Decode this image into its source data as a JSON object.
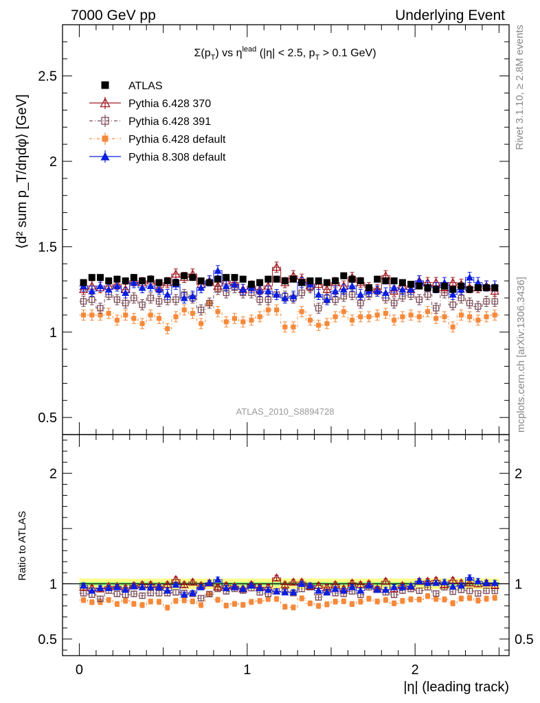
{
  "header": {
    "left": "7000 GeV pp",
    "right": "Underlying Event"
  },
  "plot_title": {
    "sigma": "Σ(p",
    "sub_t": "T",
    "vs_eta": ") vs η",
    "sup_lead": "lead",
    "cuts_a": " (|η| < 2.5, p",
    "sub_t2": "T",
    "cuts_b": " > 0.1 GeV)"
  },
  "ylabel_main": "⟨d² sum p_T/dηdφ⟩ [GeV]",
  "ylabel_ratio": "Ratio to ATLAS",
  "xlabel": "|η| (leading track)",
  "analysis_id": "ATLAS_2010_S8894728",
  "side_text_top": "Rivet 3.1.10, ≥ 2.8M events",
  "side_text_bottom": "mcplots.cern.ch [arXiv:1306.3436]",
  "legend": [
    {
      "label": "ATLAS",
      "style": "atlas"
    },
    {
      "label": "Pythia 6.428 370",
      "style": "p370"
    },
    {
      "label": "Pythia 6.428 391",
      "style": "p391"
    },
    {
      "label": "Pythia 6.428 default",
      "style": "p6def"
    },
    {
      "label": "Pythia 8.308 default",
      "style": "p8def"
    }
  ],
  "colors": {
    "atlas": "#000000",
    "p370": "#a01820",
    "p391": "#7a4a55",
    "p6def": "#f5893a",
    "p8def": "#0a1ee0",
    "band_green": "#99ff77",
    "band_yellow": "#ffff88"
  },
  "chart_data": {
    "type": "scatter",
    "x_main": {
      "ticks": [
        0,
        1,
        2
      ],
      "xlim": [
        -0.1,
        2.56
      ]
    },
    "y_main": {
      "ticks": [
        0.5,
        1,
        1.5,
        2,
        2.5
      ],
      "ylim": [
        0.4,
        2.8
      ]
    },
    "y_ratio": {
      "ticks": [
        0.5,
        1,
        2
      ],
      "ylim": [
        0.35,
        2.35
      ]
    },
    "x": [
      0.025,
      0.075,
      0.125,
      0.175,
      0.225,
      0.275,
      0.325,
      0.375,
      0.425,
      0.475,
      0.525,
      0.575,
      0.625,
      0.675,
      0.725,
      0.775,
      0.825,
      0.875,
      0.925,
      0.975,
      1.025,
      1.075,
      1.125,
      1.175,
      1.225,
      1.275,
      1.325,
      1.375,
      1.425,
      1.475,
      1.525,
      1.575,
      1.625,
      1.675,
      1.725,
      1.775,
      1.825,
      1.875,
      1.925,
      1.975,
      2.025,
      2.075,
      2.125,
      2.175,
      2.225,
      2.275,
      2.325,
      2.375,
      2.425,
      2.475
    ],
    "series": [
      {
        "name": "ATLAS",
        "style": "atlas",
        "values": [
          1.29,
          1.32,
          1.32,
          1.3,
          1.31,
          1.3,
          1.32,
          1.3,
          1.31,
          1.29,
          1.3,
          1.29,
          1.33,
          1.32,
          1.3,
          1.29,
          1.31,
          1.32,
          1.32,
          1.31,
          1.28,
          1.29,
          1.31,
          1.31,
          1.3,
          1.31,
          1.29,
          1.3,
          1.3,
          1.29,
          1.3,
          1.33,
          1.31,
          1.3,
          1.26,
          1.31,
          1.3,
          1.3,
          1.29,
          1.28,
          1.27,
          1.26,
          1.25,
          1.27,
          1.25,
          1.27,
          1.25,
          1.26,
          1.26,
          1.26
        ],
        "err": [
          0.02,
          0.02,
          0.02,
          0.02,
          0.02,
          0.02,
          0.02,
          0.02,
          0.02,
          0.02,
          0.02,
          0.02,
          0.02,
          0.02,
          0.02,
          0.02,
          0.02,
          0.02,
          0.02,
          0.02,
          0.02,
          0.02,
          0.02,
          0.02,
          0.02,
          0.02,
          0.02,
          0.02,
          0.02,
          0.02,
          0.02,
          0.02,
          0.02,
          0.02,
          0.02,
          0.02,
          0.02,
          0.02,
          0.02,
          0.02,
          0.02,
          0.02,
          0.02,
          0.02,
          0.02,
          0.02,
          0.02,
          0.02,
          0.02,
          0.02
        ]
      },
      {
        "name": "Pythia 6.428 370",
        "style": "p370",
        "values": [
          1.25,
          1.27,
          1.26,
          1.27,
          1.28,
          1.25,
          1.3,
          1.29,
          1.3,
          1.26,
          1.29,
          1.34,
          1.32,
          1.34,
          1.28,
          1.3,
          1.27,
          1.3,
          1.29,
          1.25,
          1.27,
          1.25,
          1.27,
          1.38,
          1.29,
          1.33,
          1.31,
          1.27,
          1.28,
          1.25,
          1.29,
          1.27,
          1.32,
          1.29,
          1.26,
          1.25,
          1.33,
          1.24,
          1.27,
          1.25,
          1.3,
          1.29,
          1.29,
          1.26,
          1.29,
          1.28,
          1.26,
          1.26,
          1.27,
          1.24
        ],
        "err": [
          0.03,
          0.03,
          0.03,
          0.03,
          0.03,
          0.03,
          0.03,
          0.03,
          0.03,
          0.03,
          0.03,
          0.03,
          0.03,
          0.03,
          0.03,
          0.03,
          0.03,
          0.03,
          0.03,
          0.03,
          0.03,
          0.03,
          0.03,
          0.03,
          0.03,
          0.03,
          0.03,
          0.03,
          0.03,
          0.03,
          0.03,
          0.03,
          0.03,
          0.03,
          0.03,
          0.03,
          0.03,
          0.03,
          0.03,
          0.03,
          0.03,
          0.03,
          0.03,
          0.03,
          0.03,
          0.03,
          0.03,
          0.03,
          0.03,
          0.03
        ]
      },
      {
        "name": "Pythia 6.428 391",
        "style": "p391",
        "values": [
          1.18,
          1.19,
          1.14,
          1.22,
          1.19,
          1.17,
          1.2,
          1.16,
          1.2,
          1.18,
          1.19,
          1.19,
          1.22,
          1.2,
          1.13,
          1.17,
          1.25,
          1.23,
          1.26,
          1.23,
          1.23,
          1.19,
          1.19,
          1.22,
          1.21,
          1.2,
          1.23,
          1.26,
          1.14,
          1.2,
          1.19,
          1.21,
          1.22,
          1.17,
          1.22,
          1.24,
          1.2,
          1.17,
          1.21,
          1.22,
          1.19,
          1.22,
          1.14,
          1.23,
          1.16,
          1.2,
          1.17,
          1.15,
          1.18,
          1.18
        ],
        "err": [
          0.03,
          0.03,
          0.03,
          0.03,
          0.03,
          0.03,
          0.03,
          0.03,
          0.03,
          0.03,
          0.03,
          0.03,
          0.03,
          0.03,
          0.03,
          0.03,
          0.03,
          0.03,
          0.03,
          0.03,
          0.03,
          0.03,
          0.03,
          0.03,
          0.03,
          0.03,
          0.03,
          0.03,
          0.03,
          0.03,
          0.03,
          0.03,
          0.03,
          0.03,
          0.03,
          0.03,
          0.03,
          0.03,
          0.03,
          0.03,
          0.03,
          0.03,
          0.03,
          0.03,
          0.03,
          0.03,
          0.03,
          0.03,
          0.03,
          0.03
        ]
      },
      {
        "name": "Pythia 6.428 default",
        "style": "p6def",
        "values": [
          1.1,
          1.1,
          1.1,
          1.11,
          1.07,
          1.1,
          1.08,
          1.05,
          1.1,
          1.08,
          1.02,
          1.09,
          1.13,
          1.11,
          1.05,
          1.17,
          1.12,
          1.06,
          1.08,
          1.06,
          1.07,
          1.09,
          1.13,
          1.13,
          1.03,
          1.03,
          1.12,
          1.07,
          1.04,
          1.05,
          1.09,
          1.12,
          1.07,
          1.09,
          1.09,
          1.1,
          1.11,
          1.07,
          1.09,
          1.1,
          1.09,
          1.12,
          1.08,
          1.09,
          1.03,
          1.1,
          1.09,
          1.07,
          1.09,
          1.1
        ],
        "err": [
          0.03,
          0.03,
          0.03,
          0.03,
          0.03,
          0.03,
          0.03,
          0.03,
          0.03,
          0.03,
          0.03,
          0.03,
          0.03,
          0.03,
          0.03,
          0.03,
          0.03,
          0.03,
          0.03,
          0.03,
          0.03,
          0.03,
          0.03,
          0.03,
          0.03,
          0.03,
          0.03,
          0.03,
          0.03,
          0.03,
          0.03,
          0.03,
          0.03,
          0.03,
          0.03,
          0.03,
          0.03,
          0.03,
          0.03,
          0.03,
          0.03,
          0.03,
          0.03,
          0.03,
          0.03,
          0.03,
          0.03,
          0.03,
          0.03,
          0.03
        ]
      },
      {
        "name": "Pythia 8.308 default",
        "style": "p8def",
        "values": [
          1.27,
          1.24,
          1.27,
          1.25,
          1.27,
          1.23,
          1.29,
          1.26,
          1.27,
          1.25,
          1.22,
          1.28,
          1.2,
          1.21,
          1.26,
          1.3,
          1.36,
          1.27,
          1.28,
          1.25,
          1.26,
          1.24,
          1.24,
          1.22,
          1.2,
          1.21,
          1.29,
          1.28,
          1.22,
          1.19,
          1.24,
          1.25,
          1.27,
          1.22,
          1.24,
          1.24,
          1.23,
          1.26,
          1.25,
          1.25,
          1.3,
          1.27,
          1.26,
          1.29,
          1.22,
          1.25,
          1.32,
          1.29,
          1.27,
          1.27
        ],
        "err": [
          0.03,
          0.03,
          0.03,
          0.03,
          0.03,
          0.03,
          0.03,
          0.03,
          0.03,
          0.03,
          0.03,
          0.03,
          0.03,
          0.03,
          0.03,
          0.03,
          0.03,
          0.03,
          0.03,
          0.03,
          0.03,
          0.03,
          0.03,
          0.03,
          0.03,
          0.03,
          0.03,
          0.03,
          0.03,
          0.03,
          0.03,
          0.03,
          0.03,
          0.03,
          0.03,
          0.03,
          0.03,
          0.03,
          0.03,
          0.03,
          0.03,
          0.03,
          0.03,
          0.03,
          0.03,
          0.03,
          0.03,
          0.03,
          0.03,
          0.03
        ]
      }
    ]
  }
}
